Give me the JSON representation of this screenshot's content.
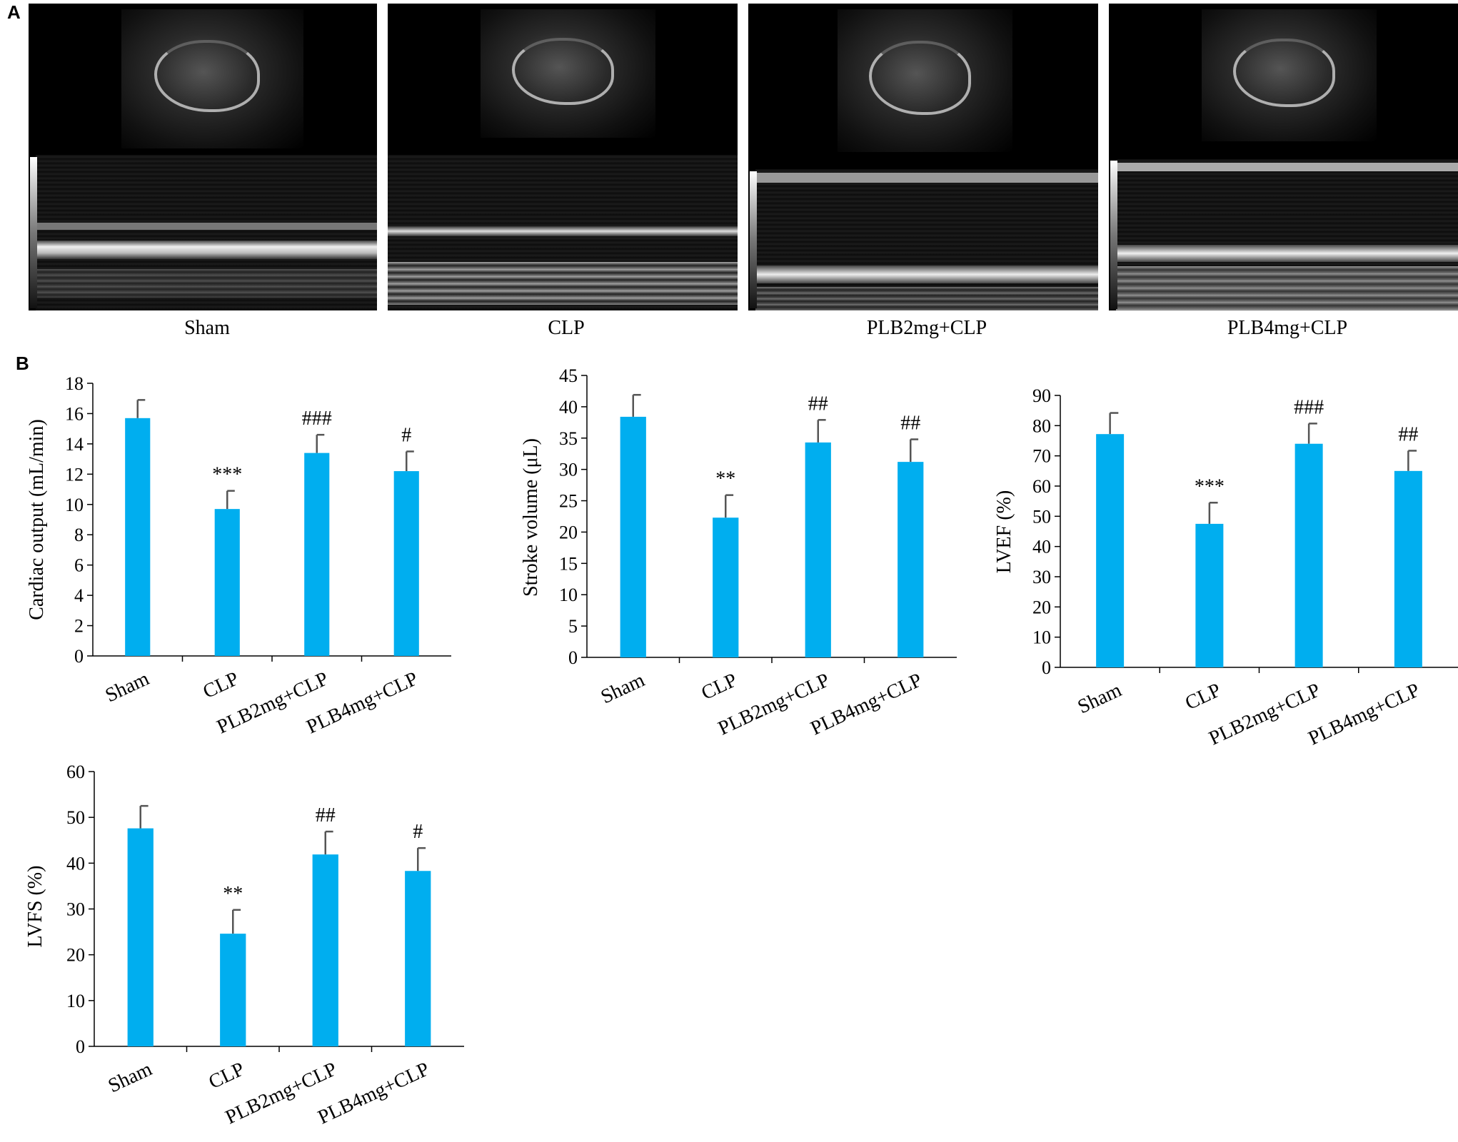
{
  "panels": {
    "a": "A",
    "b": "B"
  },
  "echo_labels": [
    "Sham",
    "CLP",
    "PLB2mg+CLP",
    "PLB4mg+CLP"
  ],
  "colors": {
    "bar": "#00AEEF",
    "error": "#555555",
    "axis": "#000000"
  },
  "chart_data": [
    {
      "type": "bar",
      "categories": [
        "Sham",
        "CLP",
        "PLB2mg+CLP",
        "PLB4mg+CLP"
      ],
      "values": [
        15.7,
        9.7,
        13.4,
        12.2
      ],
      "errors": [
        1.2,
        1.2,
        1.2,
        1.3
      ],
      "annotations": [
        "",
        "***",
        "###",
        "#"
      ],
      "ylabel": "Cardiac output (mL/min)",
      "ylim": [
        0,
        18
      ],
      "yticks": [
        0,
        2,
        4,
        6,
        8,
        10,
        12,
        14,
        16,
        18
      ]
    },
    {
      "type": "bar",
      "categories": [
        "Sham",
        "CLP",
        "PLB2mg+CLP",
        "PLB4mg+CLP"
      ],
      "values": [
        38.4,
        22.3,
        34.3,
        31.2
      ],
      "errors": [
        3.5,
        3.6,
        3.6,
        3.6
      ],
      "annotations": [
        "",
        "**",
        "##",
        "##"
      ],
      "ylabel": "Stroke volume (μL)",
      "ylim": [
        0,
        45
      ],
      "yticks": [
        0,
        5,
        10,
        15,
        20,
        25,
        30,
        35,
        40,
        45
      ]
    },
    {
      "type": "bar",
      "categories": [
        "Sham",
        "CLP",
        "PLB2mg+CLP",
        "PLB4mg+CLP"
      ],
      "values": [
        77.2,
        47.5,
        74.0,
        65.0
      ],
      "errors": [
        7.0,
        7.0,
        6.7,
        6.7
      ],
      "annotations": [
        "",
        "***",
        "###",
        "##"
      ],
      "ylabel": "LVEF (%)",
      "ylim": [
        0,
        90
      ],
      "yticks": [
        0,
        10,
        20,
        30,
        40,
        50,
        60,
        70,
        80,
        90
      ]
    },
    {
      "type": "bar",
      "categories": [
        "Sham",
        "CLP",
        "PLB2mg+CLP",
        "PLB4mg+CLP"
      ],
      "values": [
        47.6,
        24.6,
        41.9,
        38.3
      ],
      "errors": [
        4.9,
        5.2,
        5.0,
        5.0
      ],
      "annotations": [
        "",
        "**",
        "##",
        "#"
      ],
      "ylabel": "LVFS (%)",
      "ylim": [
        0,
        60
      ],
      "yticks": [
        0,
        10,
        20,
        30,
        40,
        50,
        60
      ]
    }
  ]
}
